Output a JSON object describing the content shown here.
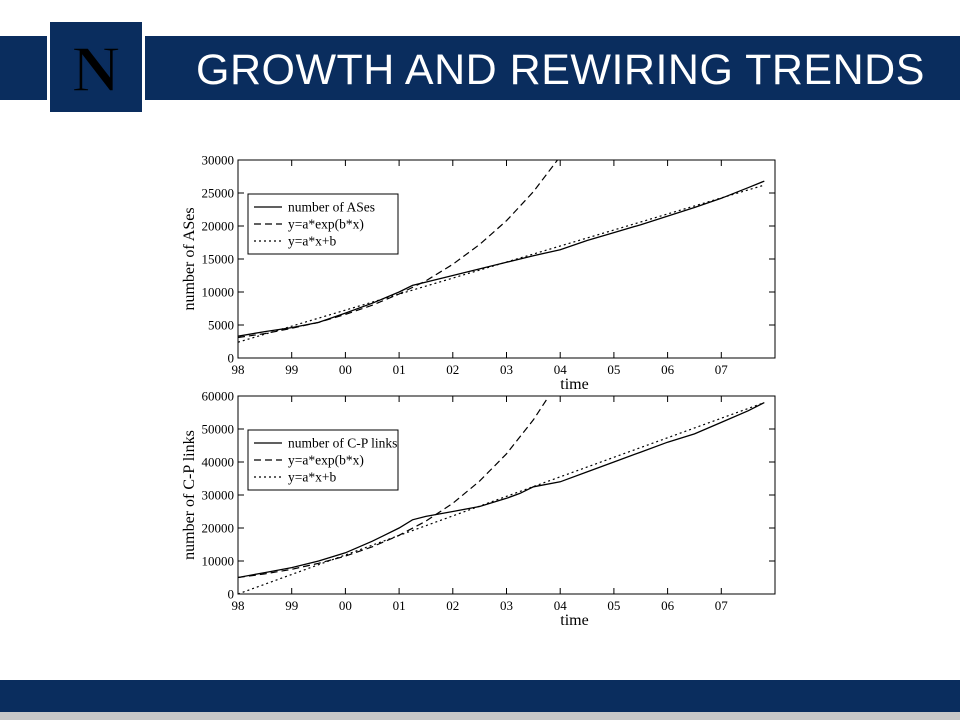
{
  "slide": {
    "title": "GROWTH AND REWIRING TRENDS",
    "logo_letter": "N",
    "colors": {
      "brand_navy": "#0a2d5e",
      "footer_gray": "#c8c8c8",
      "background": "#ffffff"
    }
  },
  "chart_data": [
    {
      "type": "line",
      "ylabel": "number of ASes",
      "xlabel": "time",
      "x_tick_labels": [
        "98",
        "99",
        "00",
        "01",
        "02",
        "03",
        "04",
        "05",
        "06",
        "07"
      ],
      "y_tick_labels": [
        "0",
        "5000",
        "10000",
        "15000",
        "20000",
        "25000",
        "30000"
      ],
      "xlim": [
        1998,
        2008
      ],
      "ylim": [
        0,
        30000
      ],
      "legend_position": "top-left",
      "series": [
        {
          "name": "number of ASes",
          "style": "solid",
          "x": [
            1998.0,
            1998.5,
            1999.0,
            1999.5,
            2000.0,
            2000.5,
            2001.0,
            2001.25,
            2001.5,
            2002.0,
            2002.5,
            2003.0,
            2003.5,
            2004.0,
            2004.5,
            2005.0,
            2005.5,
            2006.0,
            2006.5,
            2007.0,
            2007.5,
            2007.8
          ],
          "y": [
            3300,
            4000,
            4600,
            5400,
            6800,
            8300,
            10000,
            11000,
            11500,
            12500,
            13500,
            14500,
            15500,
            16400,
            17800,
            19000,
            20200,
            21500,
            22800,
            24200,
            25800,
            26800
          ]
        },
        {
          "name": "y=a*exp(b*x)",
          "style": "dashed",
          "x": [
            1998.0,
            1998.5,
            1999.0,
            1999.5,
            2000.0,
            2000.5,
            2001.0,
            2001.5,
            2002.0,
            2002.5,
            2003.0,
            2003.5,
            2003.95
          ],
          "y": [
            3100,
            3700,
            4500,
            5400,
            6600,
            8000,
            9700,
            11700,
            14200,
            17200,
            20800,
            25200,
            30000
          ]
        },
        {
          "name": "y=a*x+b",
          "style": "dotted",
          "x": [
            1998.0,
            2007.8
          ],
          "y": [
            2400,
            26200
          ]
        }
      ]
    },
    {
      "type": "line",
      "ylabel": "number of C-P links",
      "xlabel": "time",
      "x_tick_labels": [
        "98",
        "99",
        "00",
        "01",
        "02",
        "03",
        "04",
        "05",
        "06",
        "07"
      ],
      "y_tick_labels": [
        "0",
        "10000",
        "20000",
        "30000",
        "40000",
        "50000",
        "60000"
      ],
      "xlim": [
        1998,
        2008
      ],
      "ylim": [
        0,
        60000
      ],
      "legend_position": "top-left",
      "series": [
        {
          "name": "number of C-P links",
          "style": "solid",
          "x": [
            1998.0,
            1998.5,
            1999.0,
            1999.5,
            2000.0,
            2000.5,
            2001.0,
            2001.25,
            2001.5,
            2002.0,
            2002.5,
            2003.0,
            2003.25,
            2003.5,
            2004.0,
            2004.5,
            2005.0,
            2005.5,
            2006.0,
            2006.5,
            2007.0,
            2007.5,
            2007.8
          ],
          "y": [
            5000,
            6500,
            8000,
            10000,
            12500,
            16000,
            20000,
            22500,
            23500,
            25000,
            26500,
            29000,
            30500,
            32500,
            34000,
            37000,
            40000,
            43000,
            46000,
            48500,
            52000,
            55500,
            58000
          ]
        },
        {
          "name": "y=a*exp(b*x)",
          "style": "dashed",
          "x": [
            1998.0,
            1998.5,
            1999.0,
            1999.5,
            2000.0,
            2000.5,
            2001.0,
            2001.5,
            2002.0,
            2002.5,
            2003.0,
            2003.5,
            2003.75
          ],
          "y": [
            5000,
            6100,
            7500,
            9300,
            11500,
            14300,
            17800,
            22100,
            27500,
            34200,
            42500,
            52800,
            59000
          ]
        },
        {
          "name": "y=a*x+b",
          "style": "dotted",
          "x": [
            1998.0,
            2007.8
          ],
          "y": [
            0,
            58000
          ]
        }
      ]
    }
  ]
}
